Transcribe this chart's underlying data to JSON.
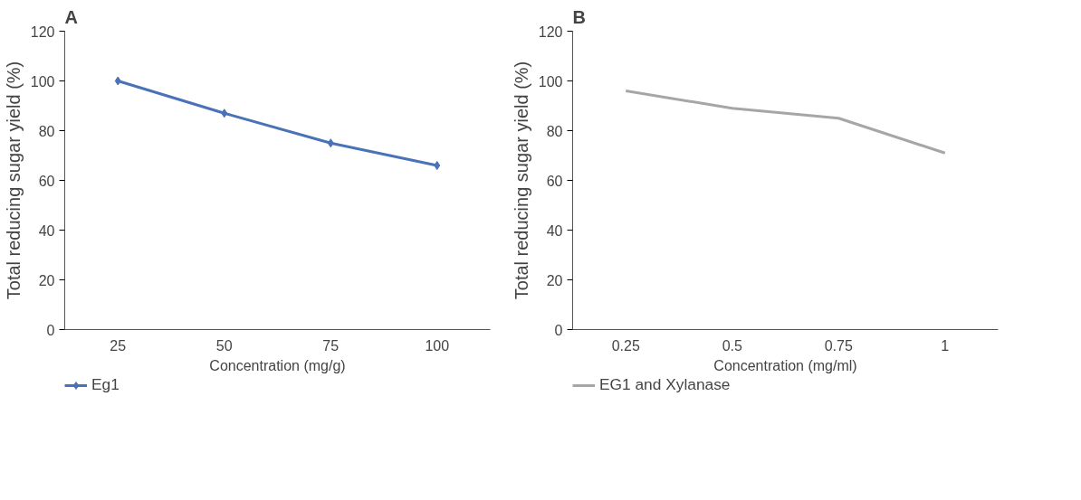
{
  "chart_data": [
    {
      "type": "line",
      "title": "A",
      "xlabel": "Concentration (mg/g)",
      "ylabel": "Total reducing sugar yield (%)",
      "categories": [
        "25",
        "50",
        "75",
        "100"
      ],
      "series": [
        {
          "name": "Eg1",
          "color": "#4a72b8",
          "values": [
            100,
            87,
            75,
            66
          ]
        }
      ],
      "ylim": [
        0,
        120
      ],
      "yticks": [
        0,
        20,
        40,
        60,
        80,
        100,
        120
      ],
      "grid": false,
      "legend": "bottom left",
      "marker": "diamond",
      "line_style": "solid"
    },
    {
      "type": "line",
      "title": "B",
      "xlabel": "Concentration (mg/ml)",
      "ylabel": "Total reducing sugar yield (%)",
      "categories": [
        "0.25",
        "0.5",
        "0.75",
        "1"
      ],
      "series": [
        {
          "name": "EG1 and Xylanase",
          "color": "#a6a6a6",
          "values": [
            96,
            89,
            85,
            71
          ]
        }
      ],
      "ylim": [
        0,
        120
      ],
      "yticks": [
        0,
        20,
        40,
        60,
        80,
        100,
        120
      ],
      "grid": false,
      "legend": "bottom left",
      "line_style": "solid"
    }
  ]
}
